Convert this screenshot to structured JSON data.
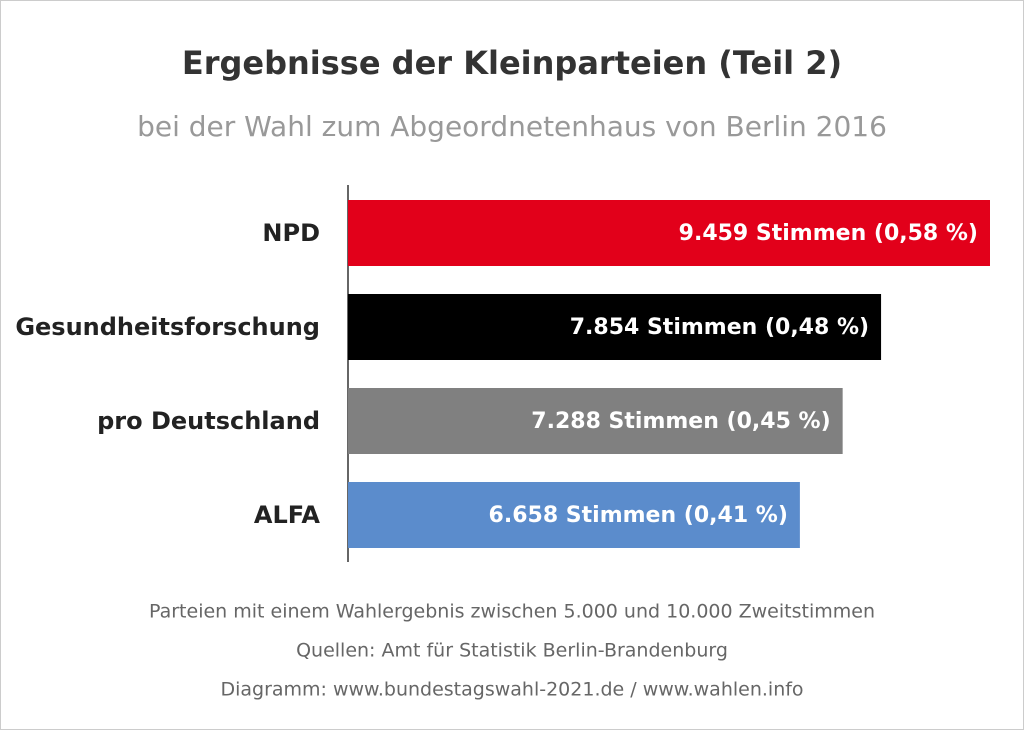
{
  "chart_data": {
    "type": "bar",
    "orientation": "horizontal",
    "title": "Ergebnisse der Kleinparteien (Teil 2)",
    "subtitle": "bei der Wahl zum Abgeordnetenhaus von Berlin 2016",
    "categories": [
      "NPD",
      "Gesundheitsforschung",
      "pro Deutschland",
      "ALFA"
    ],
    "values": [
      9459,
      7854,
      7288,
      6658
    ],
    "value_labels": [
      "9.459 Stimmen (0,58 %)",
      "7.854 Stimmen (0,48 %)",
      "7.288 Stimmen (0,45 %)",
      "6.658 Stimmen (0,41 %)"
    ],
    "colors": [
      "#e2001a",
      "#000000",
      "#808080",
      "#5b8ccc"
    ],
    "notes": [
      "Parteien mit einem Wahlergebnis zwischen 5.000 und 10.000 Zweitstimmen",
      "Quellen: Amt für Statistik Berlin-Brandenburg",
      "Diagramm: www.bundestagswahl-2021.de / www.wahlen.info"
    ]
  }
}
